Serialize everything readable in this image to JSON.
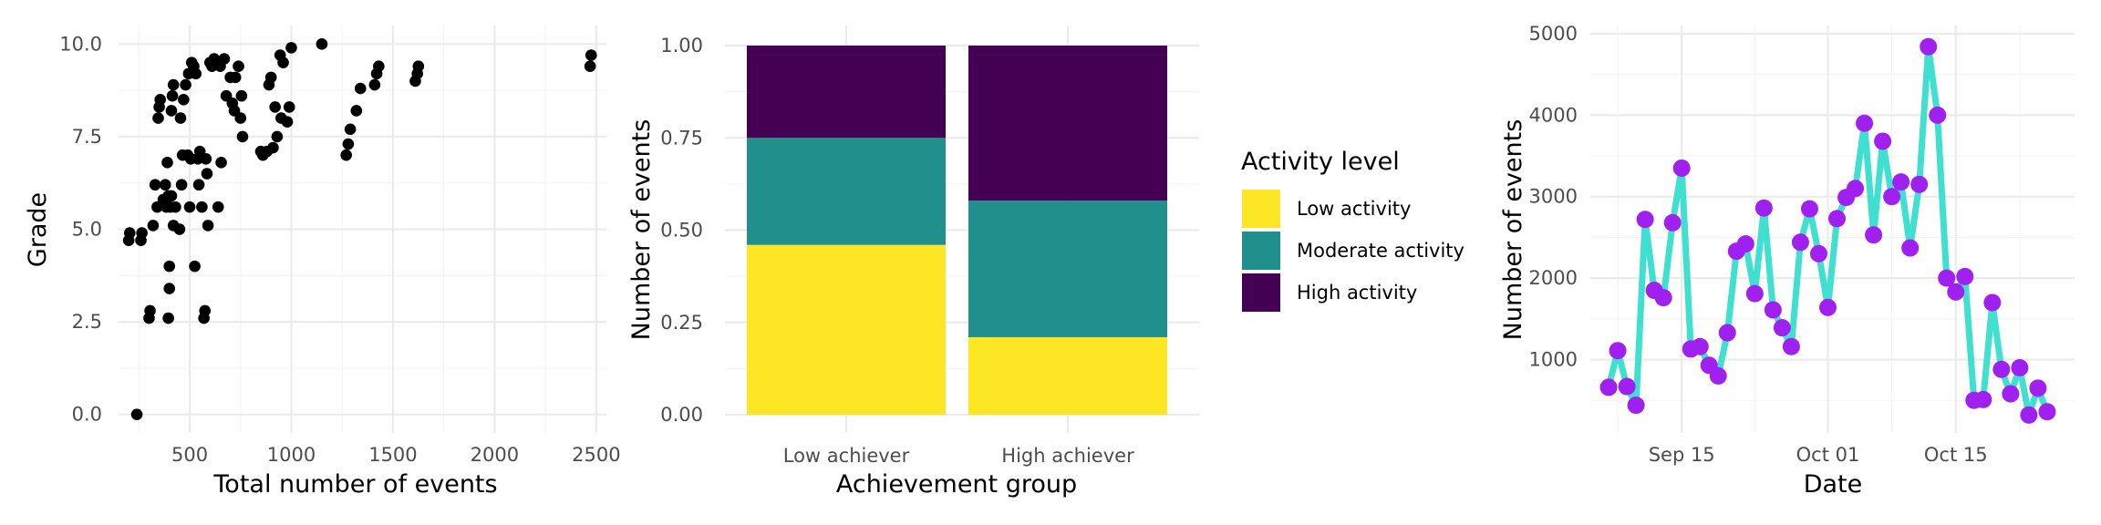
{
  "chart_data": [
    {
      "type": "scatter",
      "xlabel": "Total number of events",
      "ylabel": "Grade",
      "xlim": [
        150,
        2550
      ],
      "ylim": [
        -0.5,
        10.5
      ],
      "xticks": [
        "500",
        "1000",
        "1500",
        "2000",
        "2500"
      ],
      "yticks": [
        "0.0",
        "2.5",
        "5.0",
        "7.5",
        "10.0"
      ],
      "x_tick_values": [
        500,
        1000,
        1500,
        2000,
        2500
      ],
      "y_tick_values": [
        0,
        2.5,
        5,
        7.5,
        10
      ],
      "grid": true,
      "point_color": "#000000",
      "points": [
        [
          200,
          4.7
        ],
        [
          205,
          4.9
        ],
        [
          240,
          0.0
        ],
        [
          260,
          4.7
        ],
        [
          265,
          4.9
        ],
        [
          300,
          2.6
        ],
        [
          305,
          2.8
        ],
        [
          320,
          5.1
        ],
        [
          330,
          6.2
        ],
        [
          340,
          5.6
        ],
        [
          345,
          8.0
        ],
        [
          350,
          8.3
        ],
        [
          355,
          8.5
        ],
        [
          370,
          5.8
        ],
        [
          380,
          6.2
        ],
        [
          385,
          5.6
        ],
        [
          390,
          6.8
        ],
        [
          395,
          5.9
        ],
        [
          395,
          2.6
        ],
        [
          400,
          3.4
        ],
        [
          400,
          4.0
        ],
        [
          405,
          5.6
        ],
        [
          410,
          5.9
        ],
        [
          410,
          8.2
        ],
        [
          415,
          8.6
        ],
        [
          420,
          8.9
        ],
        [
          420,
          5.1
        ],
        [
          430,
          5.6
        ],
        [
          450,
          5.0
        ],
        [
          455,
          8.0
        ],
        [
          460,
          6.2
        ],
        [
          465,
          7.0
        ],
        [
          470,
          8.5
        ],
        [
          480,
          8.9
        ],
        [
          490,
          7.0
        ],
        [
          495,
          9.2
        ],
        [
          500,
          5.6
        ],
        [
          505,
          6.9
        ],
        [
          510,
          9.5
        ],
        [
          520,
          9.4
        ],
        [
          525,
          4.0
        ],
        [
          530,
          9.2
        ],
        [
          540,
          6.9
        ],
        [
          545,
          6.2
        ],
        [
          550,
          7.1
        ],
        [
          560,
          5.6
        ],
        [
          570,
          2.6
        ],
        [
          575,
          2.8
        ],
        [
          580,
          6.9
        ],
        [
          585,
          6.5
        ],
        [
          590,
          5.1
        ],
        [
          600,
          9.5
        ],
        [
          610,
          9.4
        ],
        [
          620,
          9.6
        ],
        [
          640,
          5.6
        ],
        [
          650,
          9.4
        ],
        [
          655,
          6.8
        ],
        [
          670,
          9.6
        ],
        [
          680,
          8.6
        ],
        [
          700,
          9.1
        ],
        [
          710,
          8.4
        ],
        [
          720,
          8.2
        ],
        [
          725,
          9.1
        ],
        [
          740,
          9.4
        ],
        [
          750,
          8.0
        ],
        [
          755,
          8.6
        ],
        [
          760,
          7.5
        ],
        [
          850,
          7.1
        ],
        [
          860,
          7.0
        ],
        [
          880,
          7.1
        ],
        [
          890,
          8.9
        ],
        [
          900,
          9.1
        ],
        [
          910,
          7.2
        ],
        [
          920,
          8.3
        ],
        [
          930,
          7.5
        ],
        [
          945,
          9.7
        ],
        [
          950,
          8.0
        ],
        [
          960,
          9.5
        ],
        [
          980,
          7.9
        ],
        [
          990,
          8.3
        ],
        [
          1000,
          9.9
        ],
        [
          1150,
          10.0
        ],
        [
          1270,
          7.0
        ],
        [
          1280,
          7.3
        ],
        [
          1290,
          7.7
        ],
        [
          1320,
          8.2
        ],
        [
          1340,
          8.8
        ],
        [
          1410,
          8.9
        ],
        [
          1420,
          9.2
        ],
        [
          1430,
          9.4
        ],
        [
          1610,
          9.0
        ],
        [
          1620,
          9.2
        ],
        [
          1625,
          9.4
        ],
        [
          2470,
          9.4
        ],
        [
          2475,
          9.7
        ]
      ]
    },
    {
      "type": "bar",
      "stacked": true,
      "categories": [
        "Low achiever",
        "High achiever"
      ],
      "xlabel": "Achievement group",
      "ylabel": "Number of events",
      "ylim": [
        0,
        1.05
      ],
      "yticks": [
        "0.00",
        "0.25",
        "0.50",
        "0.75",
        "1.00"
      ],
      "y_tick_values": [
        0,
        0.25,
        0.5,
        0.75,
        1.0
      ],
      "legend_title": "Activity level",
      "legend_position": "right",
      "series": [
        {
          "name": "Low activity",
          "color": "#FDE725",
          "values": [
            0.46,
            0.21
          ]
        },
        {
          "name": "Moderate activity",
          "color": "#21908C",
          "values": [
            0.29,
            0.37
          ]
        },
        {
          "name": "High activity",
          "color": "#440154",
          "values": [
            0.25,
            0.42
          ]
        }
      ]
    },
    {
      "type": "line",
      "xlabel": "Date",
      "ylabel": "Number of events",
      "xticks": [
        "Sep 15",
        "Oct 01",
        "Oct 15"
      ],
      "x_tick_values": [
        "2023-09-15",
        "2023-10-01",
        "2023-10-15"
      ],
      "yticks": [
        "1000",
        "2000",
        "3000",
        "4000",
        "5000"
      ],
      "y_tick_values": [
        1000,
        2000,
        3000,
        4000,
        5000
      ],
      "xlim": [
        "2023-09-05",
        "2023-10-28"
      ],
      "ylim": [
        100,
        5100
      ],
      "line_color": "#40E0D0",
      "point_color": "#A020F0",
      "points": [
        [
          "2023-09-07",
          660
        ],
        [
          "2023-09-08",
          1110
        ],
        [
          "2023-09-09",
          670
        ],
        [
          "2023-09-10",
          440
        ],
        [
          "2023-09-11",
          2720
        ],
        [
          "2023-09-12",
          1850
        ],
        [
          "2023-09-13",
          1760
        ],
        [
          "2023-09-14",
          2680
        ],
        [
          "2023-09-15",
          3350
        ],
        [
          "2023-09-16",
          1130
        ],
        [
          "2023-09-17",
          1160
        ],
        [
          "2023-09-18",
          930
        ],
        [
          "2023-09-19",
          800
        ],
        [
          "2023-09-20",
          1330
        ],
        [
          "2023-09-21",
          2330
        ],
        [
          "2023-09-22",
          2420
        ],
        [
          "2023-09-23",
          1810
        ],
        [
          "2023-09-24",
          2860
        ],
        [
          "2023-09-25",
          1610
        ],
        [
          "2023-09-26",
          1390
        ],
        [
          "2023-09-27",
          1160
        ],
        [
          "2023-09-28",
          2440
        ],
        [
          "2023-09-29",
          2850
        ],
        [
          "2023-09-30",
          2300
        ],
        [
          "2023-10-01",
          1640
        ],
        [
          "2023-10-02",
          2730
        ],
        [
          "2023-10-03",
          2990
        ],
        [
          "2023-10-04",
          3100
        ],
        [
          "2023-10-05",
          3900
        ],
        [
          "2023-10-06",
          2530
        ],
        [
          "2023-10-07",
          3680
        ],
        [
          "2023-10-08",
          3000
        ],
        [
          "2023-10-09",
          3180
        ],
        [
          "2023-10-10",
          2370
        ],
        [
          "2023-10-11",
          3150
        ],
        [
          "2023-10-12",
          4840
        ],
        [
          "2023-10-13",
          4000
        ],
        [
          "2023-10-14",
          2000
        ],
        [
          "2023-10-15",
          1830
        ],
        [
          "2023-10-16",
          2020
        ],
        [
          "2023-10-17",
          500
        ],
        [
          "2023-10-18",
          510
        ],
        [
          "2023-10-19",
          1700
        ],
        [
          "2023-10-20",
          880
        ],
        [
          "2023-10-21",
          580
        ],
        [
          "2023-10-22",
          900
        ],
        [
          "2023-10-23",
          320
        ],
        [
          "2023-10-24",
          650
        ],
        [
          "2023-10-25",
          360
        ]
      ]
    }
  ]
}
